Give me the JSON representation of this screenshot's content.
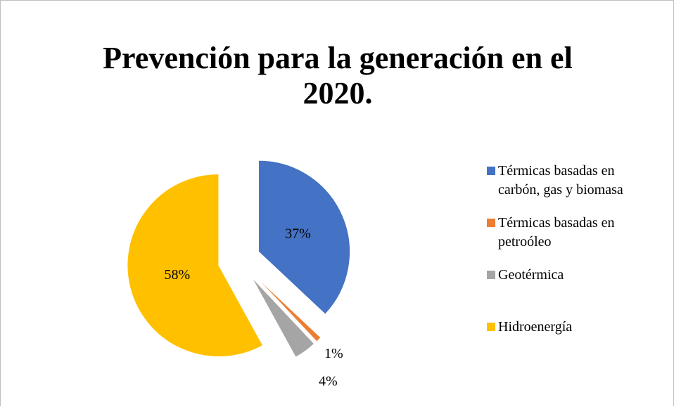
{
  "chart_data": {
    "type": "pie",
    "title": "Prevención para la generación en el 2020.",
    "categories": [
      "Térmicas basadas en carbón, gas y biomasa",
      "Térmicas basadas en petroóleo",
      "Geotérmica",
      "Hidroenergía"
    ],
    "values": [
      37,
      1,
      4,
      58
    ],
    "value_labels": [
      "37%",
      "1%",
      "4%",
      "58%"
    ],
    "colors": [
      "#4472c4",
      "#ed7d31",
      "#a5a5a5",
      "#ffc000"
    ],
    "legend": "right"
  }
}
